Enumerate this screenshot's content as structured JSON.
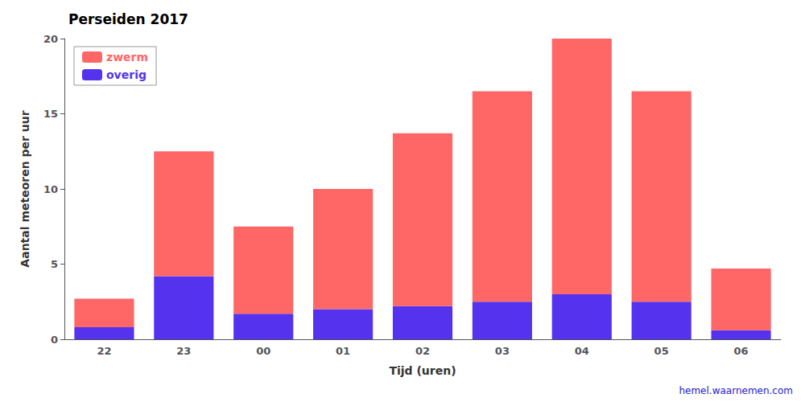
{
  "chart_data": {
    "type": "bar",
    "title": "Perseiden 2017",
    "xlabel": "Tijd (uren)",
    "ylabel": "Aantal meteoren per uur",
    "categories": [
      "22",
      "23",
      "00",
      "01",
      "02",
      "03",
      "04",
      "05",
      "06"
    ],
    "series": [
      {
        "name": "overig",
        "color": "#5533EE",
        "values": [
          0.8,
          4.2,
          1.7,
          2.0,
          2.2,
          2.5,
          3.0,
          2.5,
          0.6
        ]
      },
      {
        "name": "zwerm",
        "color": "#FF6666",
        "values": [
          1.9,
          8.3,
          5.8,
          8.0,
          11.5,
          14.0,
          17.0,
          14.0,
          4.1
        ]
      }
    ],
    "stacked": true,
    "ylim": [
      0,
      20
    ],
    "yticks": [
      0,
      5,
      10,
      15,
      20
    ],
    "grid": false,
    "legend": "upper left",
    "annotations": [
      {
        "text": "hemel.waarnemen.com",
        "color": "#2222CC"
      }
    ]
  }
}
